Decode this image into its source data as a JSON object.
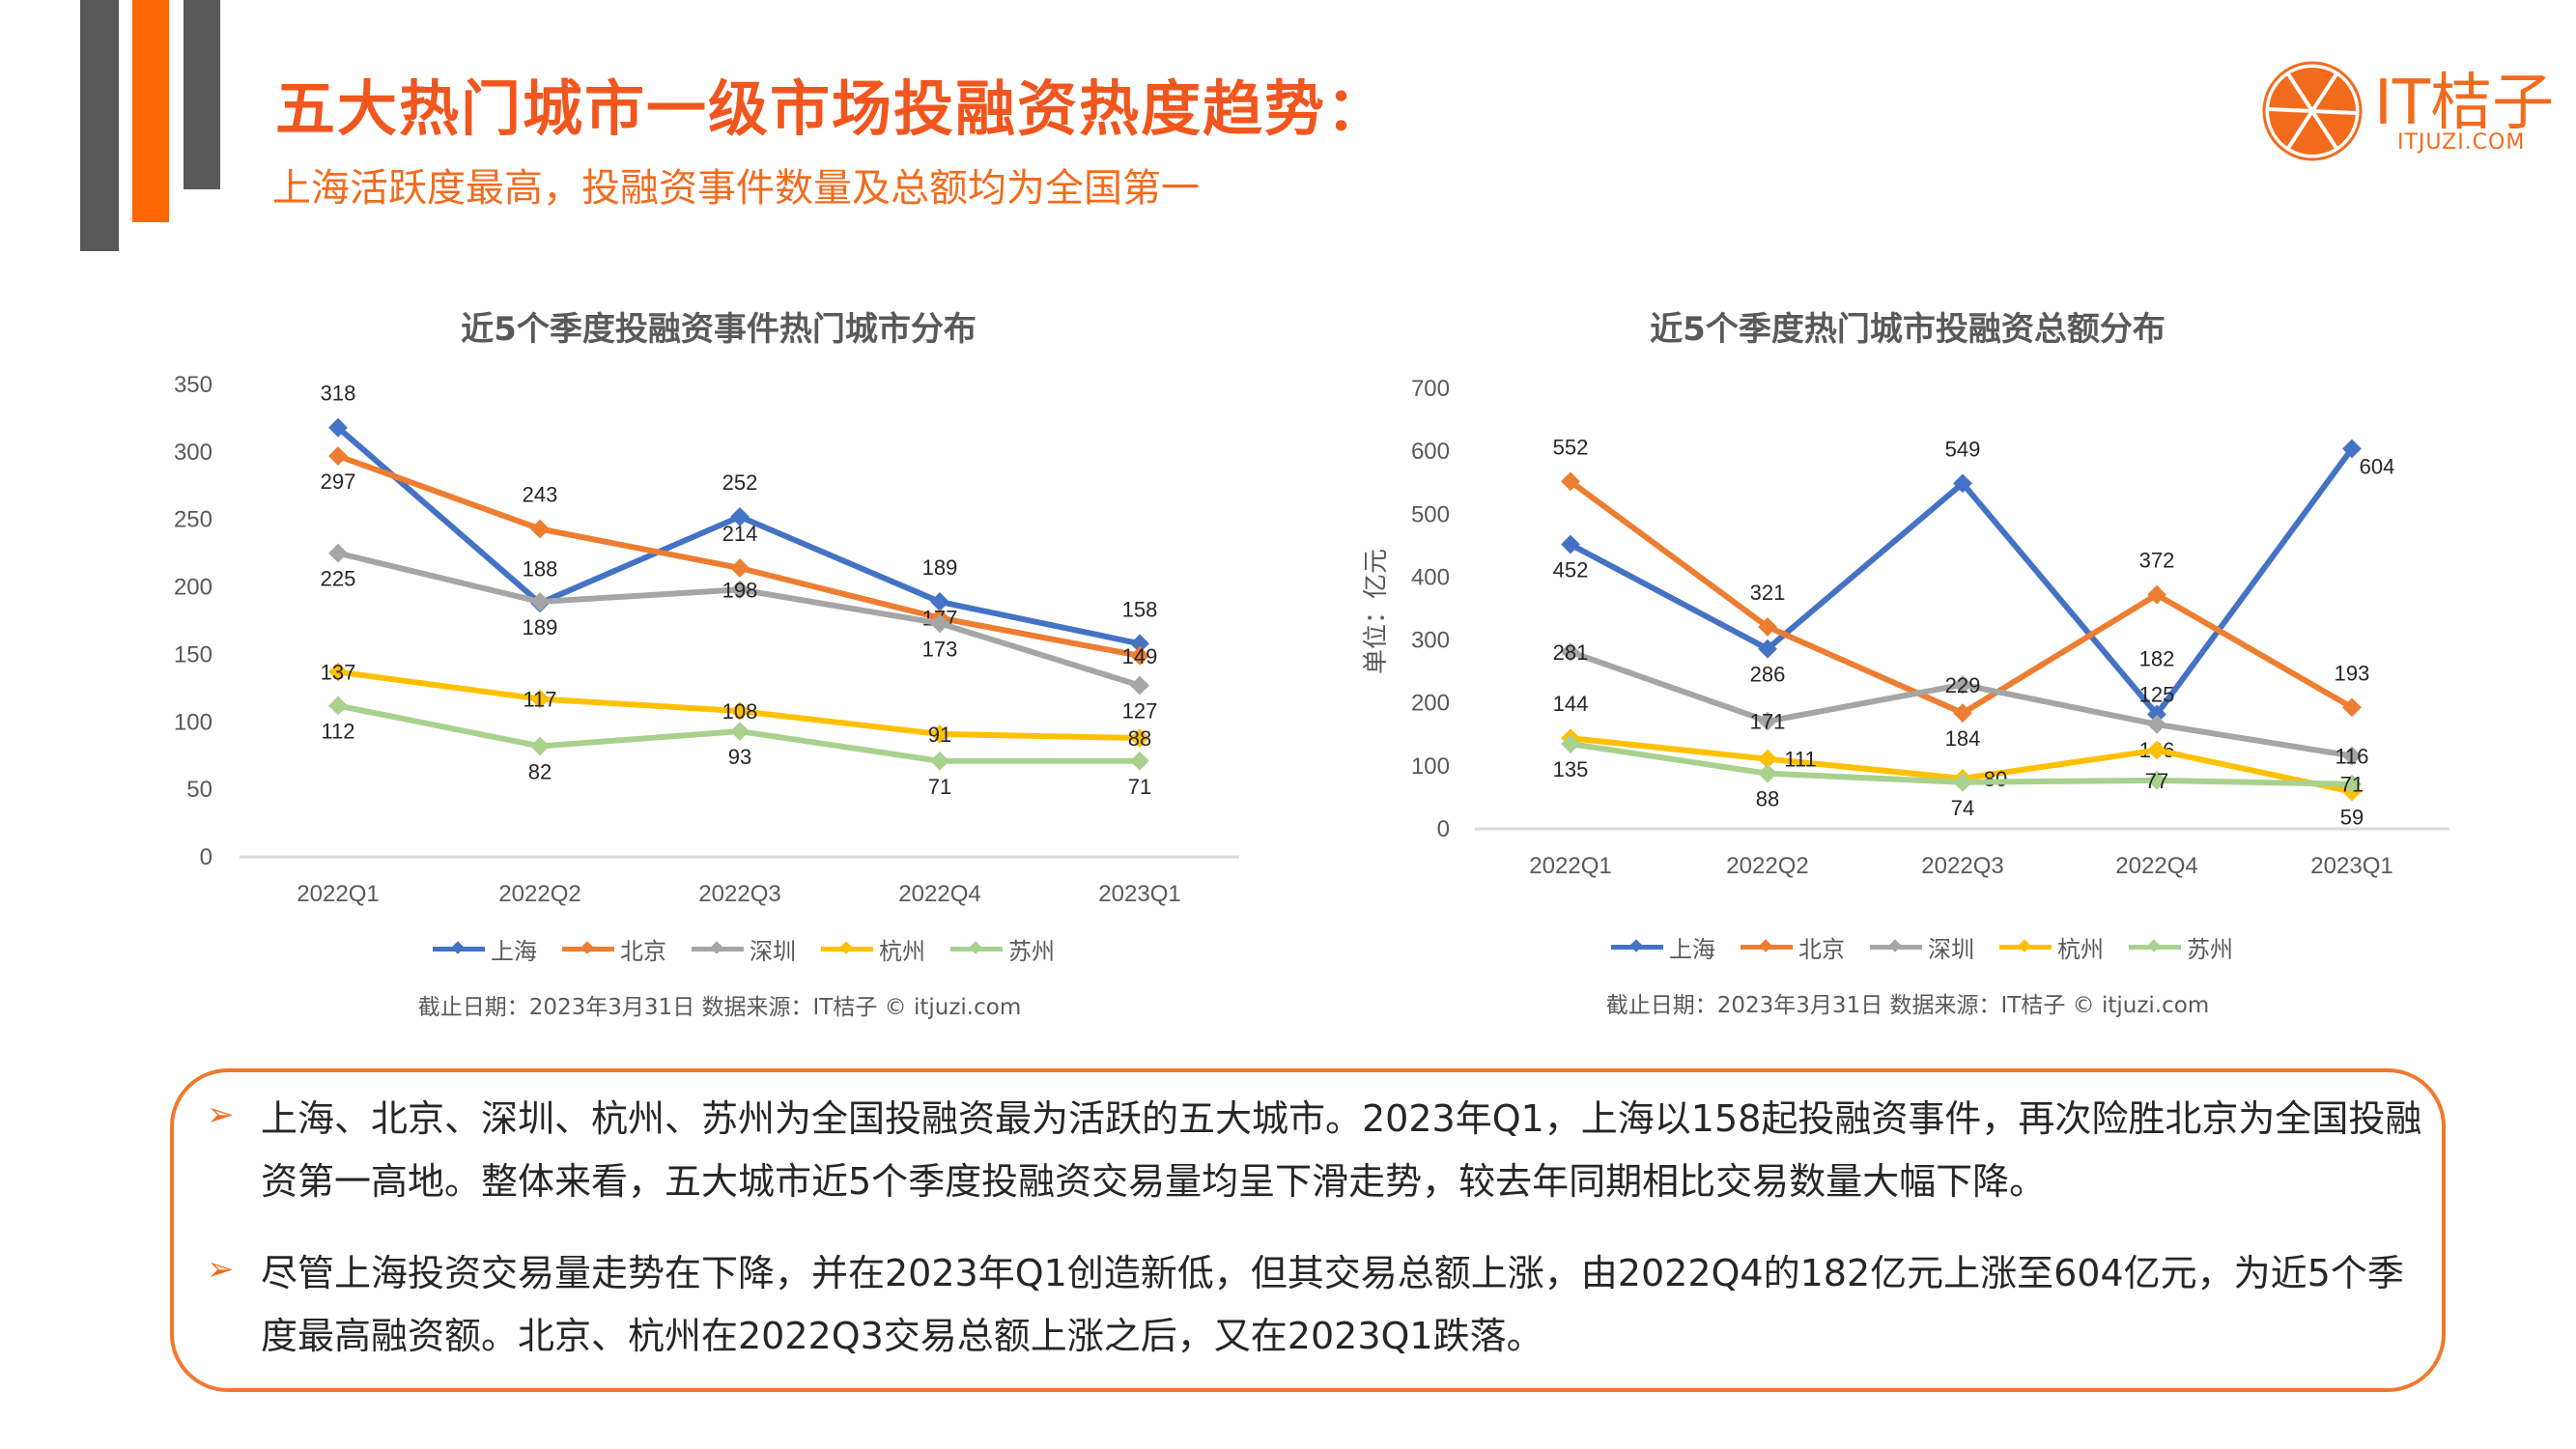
{
  "header": {
    "title": "五大热门城市一级市场投融资热度趋势：",
    "subtitle": "上海活跃度最高，投融资事件数量及总额均为全国第一",
    "logo_text": "IT桔子",
    "logo_url_text": "ITJUZI.COM"
  },
  "colors": {
    "accent": "#f26b1d",
    "bar_gray": "#595959",
    "上海": "#4472c4",
    "北京": "#ed7d31",
    "深圳": "#a5a5a5",
    "杭州": "#ffc000",
    "苏州": "#a9d18e"
  },
  "chart_data": [
    {
      "type": "line",
      "title": "近5个季度投融资事件热门城市分布",
      "xlabel": "",
      "ylabel": "",
      "categories": [
        "2022Q1",
        "2022Q2",
        "2022Q3",
        "2022Q4",
        "2023Q1"
      ],
      "ylim": [
        0,
        350
      ],
      "yticks": [
        0,
        50,
        100,
        150,
        200,
        250,
        300,
        350
      ],
      "grid": false,
      "legend": "bottom",
      "series": [
        {
          "name": "上海",
          "values": [
            318,
            188,
            252,
            189,
            158
          ]
        },
        {
          "name": "北京",
          "values": [
            297,
            243,
            214,
            177,
            149
          ]
        },
        {
          "name": "深圳",
          "values": [
            225,
            189,
            198,
            173,
            127
          ]
        },
        {
          "name": "杭州",
          "values": [
            137,
            117,
            108,
            91,
            88
          ]
        },
        {
          "name": "苏州",
          "values": [
            112,
            82,
            93,
            71,
            71
          ]
        }
      ],
      "source": "截止日期：2023年3月31日    数据来源：IT桔子 © itjuzi.com"
    },
    {
      "type": "line",
      "title": "近5个季度热门城市投融资总额分布",
      "xlabel": "",
      "ylabel": "单位：亿元",
      "categories": [
        "2022Q1",
        "2022Q2",
        "2022Q3",
        "2022Q4",
        "2023Q1"
      ],
      "ylim": [
        0,
        700
      ],
      "yticks": [
        0,
        100,
        200,
        300,
        400,
        500,
        600,
        700
      ],
      "grid": false,
      "legend": "bottom",
      "series": [
        {
          "name": "上海",
          "values": [
            452,
            286,
            549,
            182,
            604
          ]
        },
        {
          "name": "北京",
          "values": [
            552,
            321,
            184,
            372,
            193
          ]
        },
        {
          "name": "深圳",
          "values": [
            281,
            171,
            229,
            166,
            116
          ]
        },
        {
          "name": "杭州",
          "values": [
            144,
            111,
            80,
            125,
            59
          ]
        },
        {
          "name": "苏州",
          "values": [
            135,
            88,
            74,
            77,
            71
          ]
        }
      ],
      "source": "截止日期：2023年3月31日    数据来源：IT桔子 © itjuzi.com"
    }
  ],
  "summary": {
    "bullets": [
      "上海、北京、深圳、杭州、苏州为全国投融资最为活跃的五大城市。2023年Q1，上海以158起投融资事件，再次险胜北京为全国投融资第一高地。整体来看，五大城市近5个季度投融资交易量均呈下滑走势，较去年同期相比交易数量大幅下降。",
      "尽管上海投资交易量走势在下降，并在2023年Q1创造新低，但其交易总额上涨，由2022Q4的182亿元上涨至604亿元，为近5个季度最高融资额。北京、杭州在2022Q3交易总额上涨之后，又在2023Q1跌落。"
    ],
    "bullet_icon": "arrow-right-icon"
  }
}
